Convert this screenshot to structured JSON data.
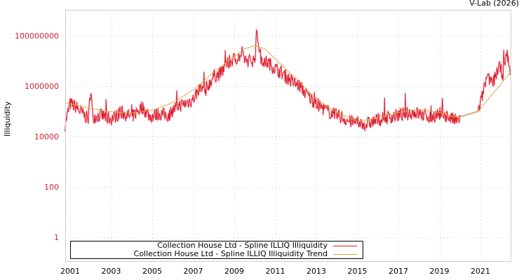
{
  "credit": "V-Lab (2026)",
  "chart_data": {
    "type": "line",
    "title": "",
    "xlabel": "",
    "ylabel": "Illiquidity",
    "yscale": "log",
    "ylim": [
      0.1,
      1000000000
    ],
    "xlim": [
      2000.75,
      2022.45
    ],
    "y_ticks": [
      1,
      100,
      10000,
      1000000,
      100000000
    ],
    "y_tick_labels": [
      "1",
      "100",
      "10000",
      "1000000",
      "100000000"
    ],
    "x_ticks": [
      2001,
      2003,
      2005,
      2007,
      2009,
      2011,
      2013,
      2015,
      2017,
      2019,
      2021
    ],
    "x_tick_labels": [
      "2001",
      "2003",
      "2005",
      "2007",
      "2009",
      "2011",
      "2013",
      "2015",
      "2017",
      "2019",
      "2021"
    ],
    "grid": true,
    "legend_position": "bottom-left inside",
    "series": [
      {
        "name": "Collection House Ltd - Spline ILLIQ Illiquidity",
        "color": "#dd1a2b",
        "x": [
          2000.75,
          2001.0,
          2001.3,
          2001.6,
          2001.9,
          2002.0,
          2002.1,
          2002.5,
          2003.0,
          2003.5,
          2004.0,
          2004.5,
          2004.9,
          2005.3,
          2005.8,
          2006.2,
          2006.6,
          2007.0,
          2007.3,
          2007.6,
          2008.0,
          2008.3,
          2008.7,
          2009.0,
          2009.3,
          2009.7,
          2010.0,
          2010.1,
          2010.3,
          2010.7,
          2011.0,
          2011.4,
          2011.8,
          2012.2,
          2012.6,
          2013.0,
          2013.4,
          2013.8,
          2014.2,
          2014.6,
          2015.0,
          2015.4,
          2015.8,
          2016.2,
          2016.6,
          2017.0,
          2017.4,
          2017.8,
          2018.2,
          2018.6,
          2019.0,
          2019.3,
          2019.6,
          2019.9,
          2020.0,
          2020.9,
          2021.0,
          2021.3,
          2021.6,
          2021.9,
          2022.1,
          2022.3,
          2022.45
        ],
        "values": [
          30000,
          200000,
          150000,
          80000,
          50000,
          900000,
          60000,
          70000,
          50000,
          90000,
          60000,
          150000,
          60000,
          80000,
          70000,
          160000,
          200000,
          300000,
          800000,
          700000,
          2500000,
          3000000,
          8000000,
          12000000,
          15000000,
          10000000,
          11000000,
          150000000,
          12000000,
          8000000,
          5000000,
          3000000,
          1500000,
          1000000,
          400000,
          200000,
          120000,
          80000,
          60000,
          40000,
          35000,
          30000,
          40000,
          50000,
          60000,
          70000,
          80000,
          90000,
          70000,
          60000,
          80000,
          70000,
          50000,
          40000,
          60000,
          100000,
          200000,
          2000000,
          1200000,
          6000000,
          3000000,
          20000000,
          3000000
        ]
      },
      {
        "name": "Collection House Ltd - Spline ILLIQ Illiquidity Trend",
        "color": "#d4b04a",
        "x": [
          2000.75,
          2002.0,
          2003.0,
          2004.0,
          2005.0,
          2006.0,
          2007.0,
          2008.0,
          2009.0,
          2009.5,
          2010.0,
          2010.5,
          2011.0,
          2012.0,
          2013.0,
          2014.0,
          2015.0,
          2016.0,
          2017.0,
          2018.0,
          2019.0,
          2019.7,
          2020.0,
          2020.9,
          2021.5,
          2022.0,
          2022.45
        ],
        "values": [
          220000,
          130000,
          95000,
          85000,
          110000,
          220000,
          700000,
          3500000,
          15000000,
          30000000,
          40000000,
          30000000,
          12000000,
          2000000,
          300000,
          90000,
          40000,
          55000,
          90000,
          120000,
          90000,
          60000,
          60000,
          100000,
          400000,
          1200000,
          3500000
        ]
      }
    ]
  },
  "legend": {
    "items": [
      {
        "label": "Collection House Ltd - Spline ILLIQ Illiquidity",
        "color": "#dd1a2b"
      },
      {
        "label": "Collection House Ltd - Spline ILLIQ Illiquidity Trend",
        "color": "#d4b04a"
      }
    ]
  }
}
